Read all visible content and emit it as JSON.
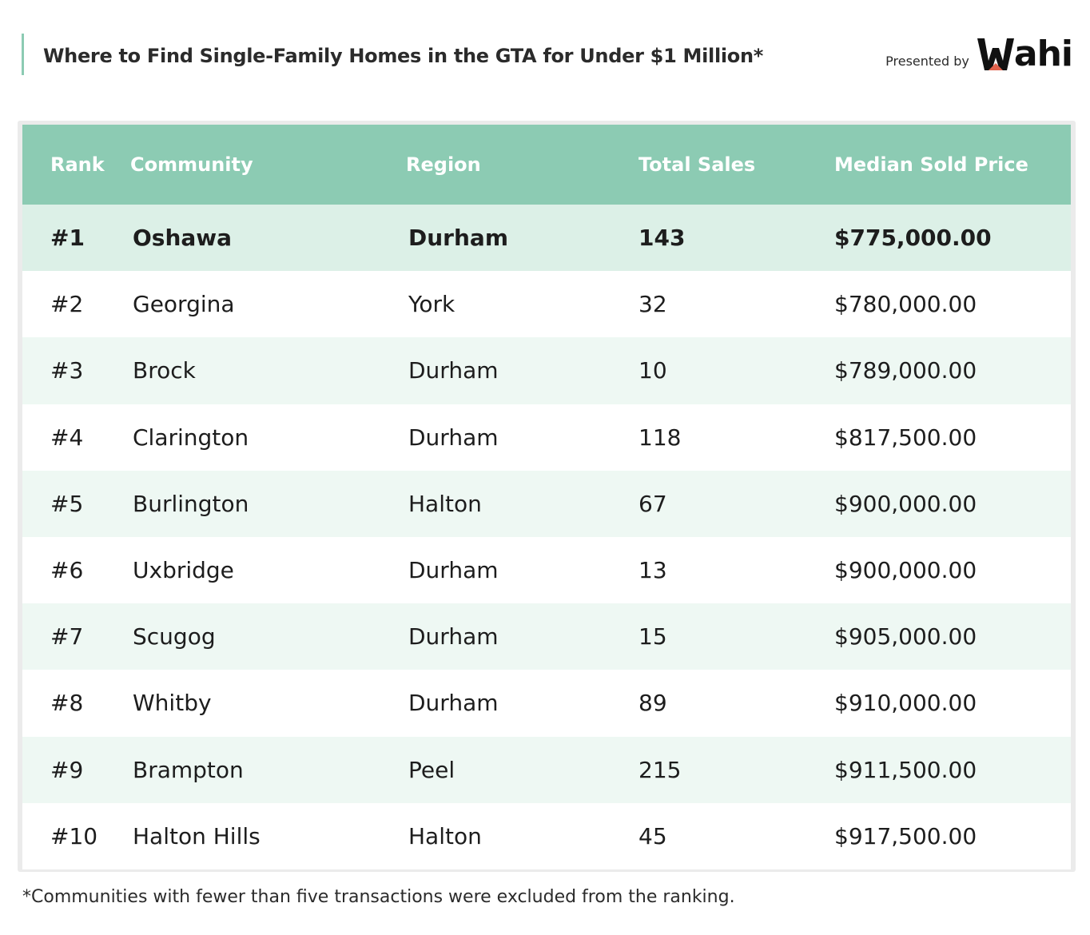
{
  "header": {
    "title": "Where to Find Single-Family Homes in the GTA for Under $1 Million*",
    "presented_by": "Presented by",
    "logo_text": "ahi",
    "brand_name": "Wahi"
  },
  "colors": {
    "accent": "#8ccbb3",
    "row_alt": "#eef8f3",
    "row_highlight": "#dcf0e7",
    "logo_roof": "#e0614b"
  },
  "chart_data": {
    "type": "table",
    "title": "Where to Find Single-Family Homes in the GTA for Under $1 Million*",
    "columns": [
      "Rank",
      "Community",
      "Region",
      "Total Sales",
      "Median Sold Price"
    ],
    "rows": [
      [
        "#1",
        "Oshawa",
        "Durham",
        "143",
        "$775,000.00"
      ],
      [
        "#2",
        "Georgina",
        "York",
        "32",
        "$780,000.00"
      ],
      [
        "#3",
        "Brock",
        "Durham",
        "10",
        "$789,000.00"
      ],
      [
        "#4",
        "Clarington",
        "Durham",
        "118",
        "$817,500.00"
      ],
      [
        "#5",
        "Burlington",
        "Halton",
        "67",
        "$900,000.00"
      ],
      [
        "#6",
        "Uxbridge",
        "Durham",
        "13",
        "$900,000.00"
      ],
      [
        "#7",
        "Scugog",
        "Durham",
        "15",
        "$905,000.00"
      ],
      [
        "#8",
        "Whitby",
        "Durham",
        "89",
        "$910,000.00"
      ],
      [
        "#9",
        "Brampton",
        "Peel",
        "215",
        "$911,500.00"
      ],
      [
        "#10",
        "Halton Hills",
        "Halton",
        "45",
        "$917,500.00"
      ]
    ]
  },
  "footnote": "*Communities with fewer than five transactions were excluded from the ranking."
}
